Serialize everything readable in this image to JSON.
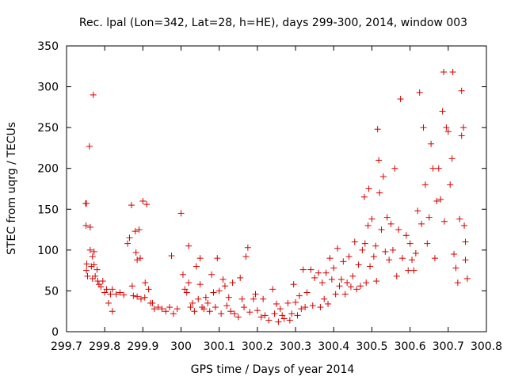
{
  "chart_data": {
    "type": "scatter",
    "title": "Rec. lpal (Lon=342, Lat=28, h=HE), days 299-300, 2014, window 003",
    "xlabel": "GPS time / Days of year 2014",
    "ylabel": "STEC from uqrg / TECUs",
    "xlim": [
      299.7,
      300.8
    ],
    "ylim": [
      0,
      350
    ],
    "grid": false,
    "legend": "none",
    "marker": "plus",
    "color": "#d40000",
    "x_ticks": [
      "299.7",
      "299.8",
      "299.9",
      "300",
      "300.1",
      "300.2",
      "300.3",
      "300.4",
      "300.5",
      "300.6",
      "300.7",
      "300.8"
    ],
    "y_ticks": [
      "0",
      "50",
      "100",
      "150",
      "200",
      "250",
      "300",
      "350"
    ],
    "points": [
      [
        299.75,
        157
      ],
      [
        299.752,
        157
      ],
      [
        299.751,
        130
      ],
      [
        299.753,
        83
      ],
      [
        299.752,
        75
      ],
      [
        299.755,
        68
      ],
      [
        299.76,
        227
      ],
      [
        299.762,
        128
      ],
      [
        299.762,
        100
      ],
      [
        299.765,
        80
      ],
      [
        299.768,
        92
      ],
      [
        299.768,
        65
      ],
      [
        299.77,
        290
      ],
      [
        299.772,
        98
      ],
      [
        299.772,
        82
      ],
      [
        299.775,
        68
      ],
      [
        299.78,
        76
      ],
      [
        299.782,
        62
      ],
      [
        299.785,
        58
      ],
      [
        299.79,
        55
      ],
      [
        299.795,
        62
      ],
      [
        299.8,
        48
      ],
      [
        299.805,
        52
      ],
      [
        299.81,
        35
      ],
      [
        299.815,
        46
      ],
      [
        299.82,
        25
      ],
      [
        299.82,
        52
      ],
      [
        299.83,
        46
      ],
      [
        299.84,
        48
      ],
      [
        299.85,
        45
      ],
      [
        299.86,
        108
      ],
      [
        299.865,
        115
      ],
      [
        299.87,
        155
      ],
      [
        299.872,
        56
      ],
      [
        299.875,
        44
      ],
      [
        299.88,
        123
      ],
      [
        299.882,
        97
      ],
      [
        299.885,
        88
      ],
      [
        299.885,
        43
      ],
      [
        299.89,
        125
      ],
      [
        299.893,
        90
      ],
      [
        299.895,
        40
      ],
      [
        299.9,
        160
      ],
      [
        299.905,
        42
      ],
      [
        299.906,
        60
      ],
      [
        299.91,
        156
      ],
      [
        299.915,
        52
      ],
      [
        299.92,
        35
      ],
      [
        299.925,
        35
      ],
      [
        299.93,
        28
      ],
      [
        299.94,
        30
      ],
      [
        299.95,
        28
      ],
      [
        299.96,
        25
      ],
      [
        299.97,
        30
      ],
      [
        299.975,
        93
      ],
      [
        299.98,
        22
      ],
      [
        299.99,
        28
      ],
      [
        300.0,
        145
      ],
      [
        300.005,
        70
      ],
      [
        300.01,
        52
      ],
      [
        300.015,
        48
      ],
      [
        300.02,
        105
      ],
      [
        300.02,
        60
      ],
      [
        300.025,
        30
      ],
      [
        300.03,
        35
      ],
      [
        300.035,
        25
      ],
      [
        300.04,
        80
      ],
      [
        300.045,
        40
      ],
      [
        300.05,
        90
      ],
      [
        300.05,
        58
      ],
      [
        300.055,
        30
      ],
      [
        300.06,
        28
      ],
      [
        300.065,
        42
      ],
      [
        300.07,
        35
      ],
      [
        300.075,
        25
      ],
      [
        300.08,
        70
      ],
      [
        300.085,
        48
      ],
      [
        300.09,
        30
      ],
      [
        300.095,
        90
      ],
      [
        300.1,
        50
      ],
      [
        300.105,
        22
      ],
      [
        300.11,
        64
      ],
      [
        300.115,
        56
      ],
      [
        300.12,
        32
      ],
      [
        300.125,
        42
      ],
      [
        300.13,
        25
      ],
      [
        300.135,
        60
      ],
      [
        300.14,
        22
      ],
      [
        300.15,
        18
      ],
      [
        300.155,
        66
      ],
      [
        300.16,
        40
      ],
      [
        300.165,
        30
      ],
      [
        300.17,
        92
      ],
      [
        300.175,
        103
      ],
      [
        300.18,
        24
      ],
      [
        300.19,
        40
      ],
      [
        300.195,
        46
      ],
      [
        300.2,
        26
      ],
      [
        300.21,
        18
      ],
      [
        300.215,
        40
      ],
      [
        300.22,
        20
      ],
      [
        300.23,
        14
      ],
      [
        300.24,
        52
      ],
      [
        300.245,
        22
      ],
      [
        300.25,
        34
      ],
      [
        300.255,
        12
      ],
      [
        300.26,
        28
      ],
      [
        300.265,
        20
      ],
      [
        300.27,
        16
      ],
      [
        300.28,
        35
      ],
      [
        300.285,
        14
      ],
      [
        300.29,
        22
      ],
      [
        300.295,
        58
      ],
      [
        300.3,
        36
      ],
      [
        300.305,
        20
      ],
      [
        300.31,
        44
      ],
      [
        300.315,
        28
      ],
      [
        300.32,
        76
      ],
      [
        300.325,
        30
      ],
      [
        300.33,
        48
      ],
      [
        300.34,
        76
      ],
      [
        300.345,
        32
      ],
      [
        300.35,
        66
      ],
      [
        300.36,
        72
      ],
      [
        300.365,
        30
      ],
      [
        300.37,
        60
      ],
      [
        300.375,
        40
      ],
      [
        300.38,
        72
      ],
      [
        300.385,
        34
      ],
      [
        300.39,
        90
      ],
      [
        300.395,
        64
      ],
      [
        300.4,
        78
      ],
      [
        300.405,
        46
      ],
      [
        300.41,
        102
      ],
      [
        300.415,
        56
      ],
      [
        300.42,
        64
      ],
      [
        300.425,
        86
      ],
      [
        300.43,
        46
      ],
      [
        300.435,
        60
      ],
      [
        300.44,
        92
      ],
      [
        300.445,
        55
      ],
      [
        300.45,
        68
      ],
      [
        300.455,
        110
      ],
      [
        300.46,
        52
      ],
      [
        300.465,
        82
      ],
      [
        300.47,
        56
      ],
      [
        300.475,
        100
      ],
      [
        300.48,
        165
      ],
      [
        300.482,
        108
      ],
      [
        300.485,
        60
      ],
      [
        300.49,
        130
      ],
      [
        300.492,
        175
      ],
      [
        300.495,
        80
      ],
      [
        300.5,
        138
      ],
      [
        300.505,
        92
      ],
      [
        300.51,
        105
      ],
      [
        300.512,
        62
      ],
      [
        300.515,
        248
      ],
      [
        300.518,
        210
      ],
      [
        300.52,
        170
      ],
      [
        300.525,
        125
      ],
      [
        300.53,
        190
      ],
      [
        300.535,
        98
      ],
      [
        300.54,
        140
      ],
      [
        300.545,
        88
      ],
      [
        300.55,
        132
      ],
      [
        300.555,
        100
      ],
      [
        300.56,
        200
      ],
      [
        300.565,
        68
      ],
      [
        300.57,
        125
      ],
      [
        300.575,
        285
      ],
      [
        300.58,
        90
      ],
      [
        300.59,
        118
      ],
      [
        300.595,
        75
      ],
      [
        300.6,
        108
      ],
      [
        300.605,
        88
      ],
      [
        300.61,
        75
      ],
      [
        300.615,
        96
      ],
      [
        300.62,
        148
      ],
      [
        300.625,
        293
      ],
      [
        300.63,
        132
      ],
      [
        300.635,
        250
      ],
      [
        300.64,
        180
      ],
      [
        300.645,
        108
      ],
      [
        300.65,
        140
      ],
      [
        300.655,
        230
      ],
      [
        300.66,
        200
      ],
      [
        300.665,
        90
      ],
      [
        300.67,
        160
      ],
      [
        300.675,
        200
      ],
      [
        300.68,
        162
      ],
      [
        300.685,
        270
      ],
      [
        300.688,
        318
      ],
      [
        300.69,
        135
      ],
      [
        300.695,
        250
      ],
      [
        300.7,
        245
      ],
      [
        300.705,
        180
      ],
      [
        300.71,
        212
      ],
      [
        300.712,
        318
      ],
      [
        300.715,
        95
      ],
      [
        300.72,
        78
      ],
      [
        300.725,
        60
      ],
      [
        300.73,
        138
      ],
      [
        300.735,
        295
      ],
      [
        300.735,
        240
      ],
      [
        300.74,
        250
      ],
      [
        300.742,
        130
      ],
      [
        300.745,
        110
      ],
      [
        300.745,
        88
      ],
      [
        300.75,
        65
      ]
    ]
  }
}
